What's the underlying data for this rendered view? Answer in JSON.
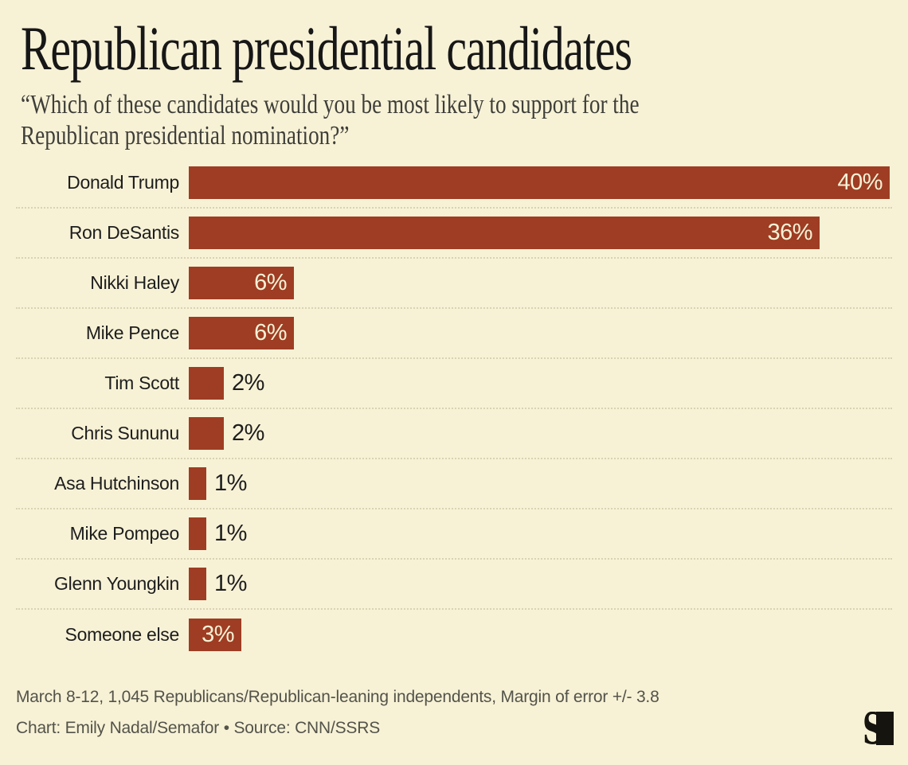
{
  "header": {
    "title": "Republican presidential candidates",
    "subtitle_line1": "“Which of these candidates would you be most likely to support for the",
    "subtitle_line2": "Republican presidential nomination?”"
  },
  "chart_data": {
    "type": "bar",
    "orientation": "horizontal",
    "title": "Republican presidential candidates",
    "subtitle": "“Which of these candidates would you be most likely to support for the Republican presidential nomination?”",
    "categories": [
      "Donald Trump",
      "Ron DeSantis",
      "Nikki Haley",
      "Mike Pence",
      "Tim Scott",
      "Chris Sununu",
      "Asa Hutchinson",
      "Mike Pompeo",
      "Glenn Youngkin",
      "Someone else"
    ],
    "values": [
      40,
      36,
      6,
      6,
      2,
      2,
      1,
      1,
      1,
      3
    ],
    "value_labels": [
      "40%",
      "36%",
      "6%",
      "6%",
      "2%",
      "2%",
      "1%",
      "1%",
      "1%",
      "3%"
    ],
    "xlabel": "",
    "ylabel": "",
    "xlim": [
      0,
      40
    ],
    "grid": "dotted horizontal separators between rows",
    "legend": "none",
    "bar_color": "#9e3d23",
    "value_label_rule": "white inside bar for values >= 3, dark outside bar for smaller values"
  },
  "footer": {
    "note": "March 8-12, 1,045 Republicans/Republican-leaning independents, Margin of error +/- 3.8",
    "credit": "Chart: Emily Nadal/Semafor • Source: CNN/SSRS"
  },
  "branding": {
    "logo_name": "semafor-logo",
    "logo_glyph": "S",
    "logo_color": "#16140e"
  },
  "colors": {
    "background": "#f7f2d6",
    "bar": "#9e3d23",
    "title_text": "#171717",
    "subtitle_text": "#3e3e39",
    "category_text": "#1d1d1d",
    "value_inside_text": "#f7f2d6",
    "value_outside_text": "#1d1d1d",
    "footer_text": "#53534a",
    "separator_dots": "#d9d3b2"
  }
}
